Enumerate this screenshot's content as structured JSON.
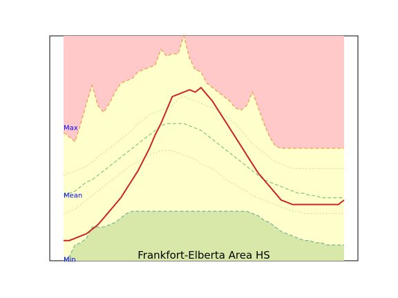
{
  "chart_data": {
    "type": "area",
    "title": "Frankfort-Elberta Area HS",
    "xlabel": "",
    "ylabel": "",
    "x": [
      1,
      2,
      3,
      4,
      5,
      6,
      7,
      8,
      9,
      10,
      11,
      12,
      13,
      14,
      15,
      16,
      17,
      18,
      19,
      20,
      21,
      22,
      23,
      24,
      25,
      26,
      27,
      28,
      29,
      30,
      31,
      32,
      33,
      34,
      35,
      36,
      37,
      38,
      39,
      40,
      41,
      42,
      43,
      44,
      45,
      46,
      47,
      48,
      49,
      50
    ],
    "xlim": [
      1,
      50
    ],
    "ylim": [
      0,
      100
    ],
    "grid": false,
    "legend": "none",
    "side_labels": {
      "max": {
        "text": "Max",
        "y": 59
      },
      "mean": {
        "text": "Mean",
        "y": 29
      },
      "min": {
        "text": "Min",
        "y": 0.5
      }
    },
    "series": [
      {
        "role": "max_band",
        "values": [
          57,
          55,
          53,
          61,
          70,
          78,
          69,
          66,
          70,
          75,
          79,
          80,
          81,
          84,
          85,
          86,
          87,
          94,
          91,
          92,
          92,
          100,
          90,
          85,
          84,
          79,
          77,
          75,
          73,
          71,
          68,
          67,
          69,
          75,
          68,
          61,
          55,
          51,
          50,
          50,
          50,
          50,
          50,
          50,
          50,
          50,
          50,
          50,
          50,
          50
        ]
      },
      {
        "role": "min_band",
        "values": [
          0,
          2,
          7,
          8,
          10,
          15,
          15,
          15,
          16,
          17,
          19,
          21,
          22,
          22,
          22,
          22,
          22,
          22,
          22,
          22,
          22,
          22,
          22,
          22,
          22,
          22,
          22,
          22,
          22,
          22,
          22,
          22,
          22,
          21,
          20,
          18,
          17,
          15,
          13,
          12,
          11,
          10,
          9,
          9,
          8,
          8,
          7,
          7,
          7,
          7
        ]
      },
      {
        "role": "upper_percentile",
        "values": [
          38,
          39,
          40,
          41,
          42,
          44,
          46,
          48,
          50,
          52,
          54,
          56,
          58,
          61,
          63,
          65,
          66,
          67,
          68,
          69,
          72,
          73,
          72,
          71,
          70,
          69,
          68,
          67,
          65,
          63,
          61,
          58,
          55,
          52,
          50,
          48,
          46,
          44,
          43,
          42,
          41,
          41,
          41,
          41,
          41,
          41,
          41,
          41,
          41,
          41
        ]
      },
      {
        "role": "mean",
        "values": [
          29,
          30,
          31,
          33,
          35,
          36,
          38,
          40,
          42,
          44,
          46,
          48,
          50,
          52,
          54,
          56,
          58,
          60,
          61,
          61,
          61,
          61,
          60,
          59,
          58,
          56,
          54,
          52,
          50,
          48,
          46,
          44,
          42,
          40,
          38,
          36,
          35,
          34,
          33,
          32,
          31,
          30,
          30,
          29,
          29,
          28,
          28,
          28,
          28,
          28
        ]
      },
      {
        "role": "lower_percentile",
        "values": [
          21,
          22,
          23,
          25,
          27,
          29,
          31,
          33,
          35,
          37,
          39,
          41,
          43,
          44,
          46,
          47,
          48,
          49,
          49,
          49,
          48,
          47,
          46,
          45,
          43,
          42,
          41,
          39,
          37,
          35,
          34,
          32,
          31,
          29,
          28,
          27,
          26,
          25,
          24,
          23,
          22,
          22,
          21,
          21,
          21,
          21,
          21,
          21,
          21,
          21
        ]
      },
      {
        "role": "actual",
        "values": [
          9,
          9,
          10,
          11,
          12,
          14,
          16,
          19,
          22,
          25,
          28,
          32,
          36,
          40,
          45,
          50,
          56,
          61,
          67,
          73,
          74,
          75,
          76,
          75,
          77,
          74,
          71,
          67,
          63,
          59,
          55,
          51,
          47,
          43,
          39,
          36,
          33,
          30,
          27,
          26,
          25,
          25,
          25,
          25,
          25,
          25,
          25,
          25,
          25,
          27
        ]
      }
    ],
    "colors": {
      "max_fill": "#ffc9c9",
      "middle_fill": "#ffffcc",
      "min_fill": "#d8e8a8",
      "max_edge": "#f0a050",
      "min_edge": "#78b898",
      "mean_line": "#88c878",
      "percentile_line": "#c8d890",
      "actual_line": "#cc2222",
      "label": "#0000ff"
    }
  }
}
